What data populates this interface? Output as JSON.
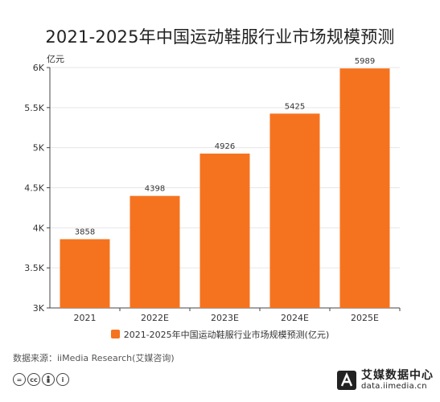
{
  "title": "2021-2025年中国运动鞋服行业市场规模预测",
  "source": "数据来源：iiMedia Research(艾媒咨询)",
  "brand": {
    "name": "艾媒数据中心",
    "url": "data.iimedia.cn"
  },
  "license_icons": [
    "equals-icon",
    "cc-icon",
    "by-icon",
    "info-icon"
  ],
  "colors": {
    "bar": "#F5731F",
    "axis": "#444444",
    "grid": "#E6E6E6",
    "brand_dark": "#222222"
  },
  "chart_data": {
    "type": "bar",
    "title": "2021-2025年中国运动鞋服行业市场规模预测",
    "ylabel": "亿元",
    "xlabel": "",
    "categories": [
      "2021",
      "2022E",
      "2023E",
      "2024E",
      "2025E"
    ],
    "series": [
      {
        "name": "2021-2025年中国运动鞋服行业市场规模预测(亿元)",
        "values": [
          3858,
          4398,
          4926,
          5425,
          5989
        ]
      }
    ],
    "ylim": [
      3000,
      6000
    ],
    "yticks": [
      {
        "value": 3000,
        "label": "3K"
      },
      {
        "value": 3500,
        "label": "3.5K"
      },
      {
        "value": 4000,
        "label": "4K"
      },
      {
        "value": 4500,
        "label": "4.5K"
      },
      {
        "value": 5000,
        "label": "5K"
      },
      {
        "value": 5500,
        "label": "5.5K"
      },
      {
        "value": 6000,
        "label": "6K"
      }
    ],
    "data_labels": [
      "3858",
      "4398",
      "4926",
      "5425",
      "5989"
    ],
    "grid": true,
    "legend_position": "bottom"
  }
}
